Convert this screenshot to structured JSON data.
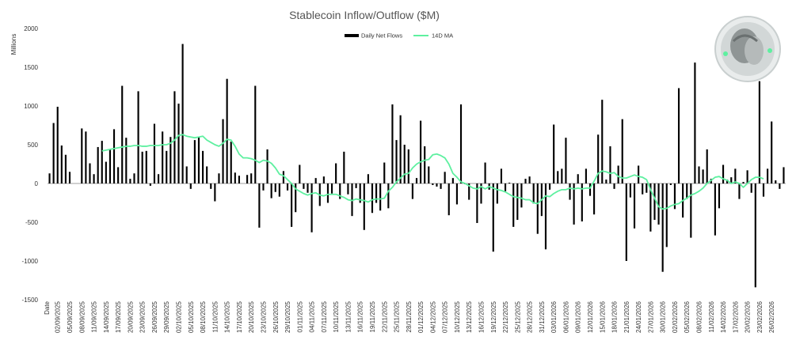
{
  "chart_data": {
    "type": "bar",
    "title": "Stablecoin Inflow/Outflow ($M)",
    "ylabel": "Millions",
    "xlabel": "Date",
    "ylim": [
      -1500,
      2000
    ],
    "yticks": [
      2000,
      1500,
      1000,
      500,
      0,
      -500,
      -1000,
      -1500
    ],
    "grid": false,
    "legend_position": "top-center",
    "colors": {
      "bars": "#000000",
      "ma": "#5ef0a0",
      "title": "#555555"
    },
    "tick_dates": [
      "02/09/2025",
      "05/09/2025",
      "08/09/2025",
      "11/09/2025",
      "14/09/2025",
      "17/09/2025",
      "20/09/2025",
      "23/09/2025",
      "26/09/2025",
      "29/09/2025",
      "02/10/2025",
      "05/10/2025",
      "08/10/2025",
      "11/10/2025",
      "14/10/2025",
      "17/10/2025",
      "20/10/2025",
      "23/10/2025",
      "26/10/2025",
      "29/10/2025",
      "01/11/2025",
      "04/11/2025",
      "07/11/2025",
      "10/11/2025",
      "13/11/2025",
      "16/11/2025",
      "19/11/2025",
      "22/11/2025",
      "25/11/2025",
      "28/11/2025",
      "01/12/2025",
      "04/12/2025",
      "07/12/2025",
      "10/12/2025",
      "13/12/2025",
      "16/12/2025",
      "19/12/2025",
      "22/12/2025",
      "25/12/2025",
      "28/12/2025",
      "31/12/2025",
      "03/01/2026",
      "06/01/2026",
      "09/01/2026",
      "12/01/2026",
      "15/01/2026",
      "18/01/2026",
      "21/01/2026",
      "24/01/2026",
      "27/01/2026",
      "30/01/2026",
      "02/02/2026",
      "05/02/2026",
      "08/02/2026",
      "11/02/2026",
      "14/02/2026",
      "17/02/2026",
      "20/02/2026",
      "23/02/2026",
      "26/02/2026"
    ],
    "series": [
      {
        "name": "Daily Net Flows",
        "kind": "bar",
        "start_date": "31/08/2025",
        "values": [
          130,
          780,
          990,
          490,
          370,
          150,
          0,
          0,
          710,
          670,
          260,
          120,
          470,
          550,
          280,
          440,
          700,
          210,
          1260,
          590,
          60,
          130,
          1190,
          410,
          420,
          -30,
          770,
          120,
          670,
          420,
          600,
          1190,
          1030,
          1800,
          220,
          -70,
          560,
          600,
          420,
          220,
          -70,
          -230,
          130,
          830,
          1350,
          540,
          140,
          100,
          0,
          110,
          130,
          1260,
          -570,
          -90,
          440,
          -190,
          -110,
          -170,
          160,
          -90,
          -560,
          -370,
          240,
          -70,
          -120,
          -630,
          70,
          -290,
          90,
          -250,
          -130,
          260,
          -200,
          410,
          -140,
          -420,
          -60,
          -250,
          -600,
          120,
          -380,
          -250,
          -350,
          270,
          -320,
          1020,
          560,
          880,
          500,
          440,
          -200,
          70,
          810,
          480,
          220,
          -20,
          -40,
          -70,
          150,
          -410,
          70,
          -270,
          1020,
          -10,
          -210,
          0,
          -510,
          -260,
          270,
          -80,
          -880,
          -260,
          190,
          -100,
          10,
          -560,
          -470,
          -310,
          60,
          90,
          -260,
          -650,
          -420,
          -850,
          -80,
          760,
          160,
          190,
          590,
          -210,
          -530,
          120,
          -490,
          190,
          -160,
          -400,
          630,
          1080,
          50,
          480,
          -70,
          230,
          830,
          -1000,
          -180,
          -580,
          230,
          -140,
          -120,
          -620,
          -470,
          -530,
          -1140,
          -820,
          -20,
          -330,
          1230,
          -440,
          -200,
          -700,
          1560,
          220,
          180,
          440,
          60,
          -670,
          -320,
          240,
          50,
          80,
          190,
          -200,
          20,
          170,
          -120,
          -1340,
          1320,
          -170,
          190,
          800,
          40,
          -70,
          210
        ]
      },
      {
        "name": "14D MA",
        "kind": "line",
        "start_date": "13/09/2025",
        "values": [
          420,
          430,
          440,
          450,
          460,
          470,
          480,
          480,
          490,
          490,
          480,
          480,
          490,
          490,
          490,
          500,
          500,
          520,
          560,
          620,
          630,
          610,
          600,
          590,
          600,
          610,
          560,
          530,
          500,
          480,
          520,
          570,
          560,
          480,
          380,
          330,
          330,
          320,
          300,
          270,
          300,
          290,
          260,
          200,
          120,
          100,
          50,
          0,
          -70,
          -100,
          -130,
          -150,
          -130,
          -120,
          -150,
          -160,
          -140,
          -140,
          -140,
          -160,
          -180,
          -210,
          -220,
          -200,
          -210,
          -220,
          -240,
          -210,
          -200,
          -200,
          -190,
          -100,
          -50,
          20,
          70,
          120,
          130,
          200,
          250,
          280,
          300,
          310,
          370,
          380,
          360,
          330,
          250,
          130,
          80,
          20,
          0,
          -30,
          -60,
          -70,
          -40,
          -70,
          -40,
          -60,
          -80,
          -90,
          -110,
          -140,
          -170,
          -180,
          -190,
          -210,
          -210,
          -250,
          -260,
          -210,
          -160,
          -170,
          -130,
          -100,
          -80,
          -80,
          -60,
          -70,
          -60,
          -70,
          -60,
          -60,
          30,
          130,
          160,
          150,
          130,
          140,
          90,
          70,
          70,
          90,
          110,
          90,
          80,
          50,
          -80,
          -190,
          -300,
          -330,
          -320,
          -290,
          -270,
          -260,
          -220,
          -190,
          -150,
          -130,
          -100,
          -60,
          0,
          40,
          80,
          90,
          60,
          40,
          0,
          20,
          0,
          -50,
          0,
          50,
          80,
          80,
          60
        ]
      }
    ]
  }
}
